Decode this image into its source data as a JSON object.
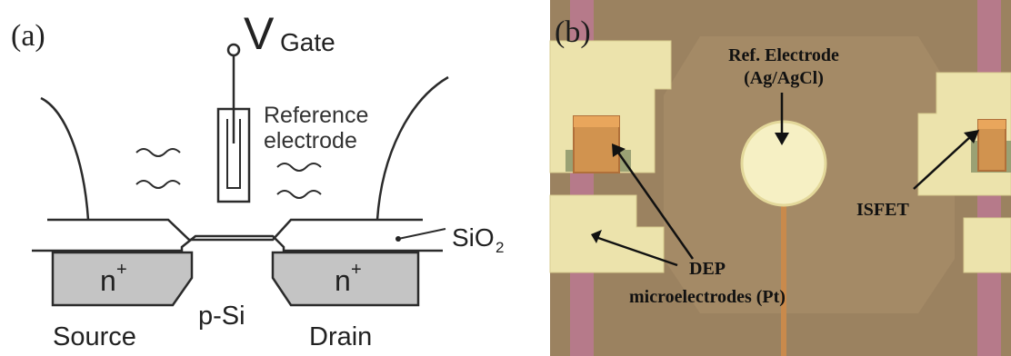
{
  "panel_a": {
    "panel_label": "(a)",
    "gate_label": "V",
    "gate_sub": "Gate",
    "reference_electrode_line1": "Reference",
    "reference_electrode_line2": "electrode",
    "oxide_label": "SiO",
    "oxide_sub": "2",
    "source_doping": "n",
    "drain_doping": "n",
    "doping_sup": "+",
    "substrate_label": "p-Si",
    "source_label": "Source",
    "drain_label": "Drain",
    "colors": {
      "line": "#2b2b2b",
      "region_fill": "#c4c4c4"
    }
  },
  "panel_b": {
    "panel_label": "(b)",
    "ref_electrode_line1": "Ref. Electrode",
    "ref_electrode_line2": "(Ag/AgCl)",
    "isfet_label": "ISFET",
    "dep_line1": "DEP",
    "dep_line2": "microelectrodes (Pt)",
    "colors": {
      "background": "#9b8260",
      "metal": "#ece3ac",
      "trace_pink": "#b67a8a",
      "trace_orange": "#c98a4c",
      "reference_disk": "#f6f0c4"
    }
  }
}
